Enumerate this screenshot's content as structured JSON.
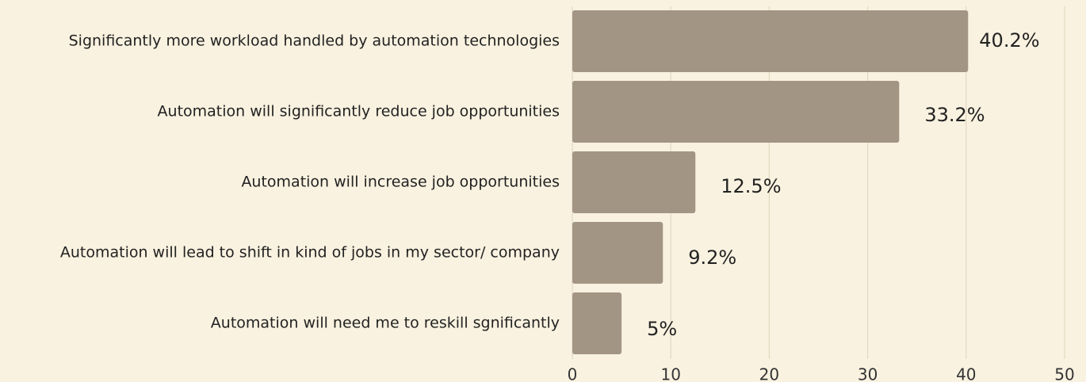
{
  "chart_data": {
    "type": "hbar",
    "categories": [
      "Significantly more workload handled by automation technologies",
      "Automation will significantly reduce job opportunities",
      "Automation will increase job opportunities",
      "Automation will lead to shift in kind of jobs in my sector/ company",
      "Automation will need me to reskill sgnificantly"
    ],
    "values": [
      40.2,
      33.2,
      12.5,
      9.2,
      5
    ],
    "value_labels": [
      "40.2%",
      "33.2%",
      "12.5%",
      "9.2%",
      "5%"
    ],
    "color": "#a39583",
    "xlim": [
      0,
      50
    ],
    "xticks": [
      0,
      10,
      20,
      30,
      40,
      50
    ],
    "grid": true
  }
}
